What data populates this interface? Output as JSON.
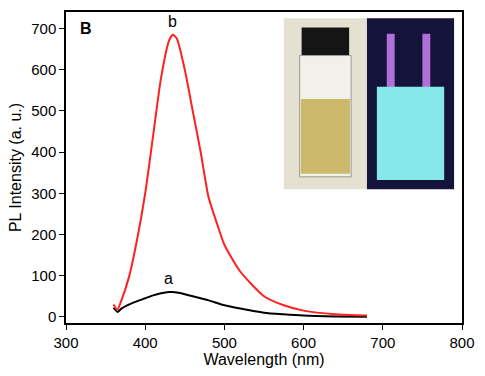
{
  "chart_data": {
    "type": "line",
    "x_title": "Wavelength (nm)",
    "y_title": "PL Intensity (a. u.)",
    "panel_label": "B",
    "x": [
      360,
      365,
      370,
      380,
      390,
      400,
      410,
      420,
      430,
      435,
      440,
      450,
      460,
      470,
      480,
      490,
      500,
      520,
      550,
      575,
      600,
      640,
      680
    ],
    "series": [
      {
        "name": "a",
        "color": "#000000",
        "values": [
          22,
          12,
          20,
          30,
          38,
          45,
          52,
          57,
          60,
          60,
          59,
          55,
          50,
          45,
          40,
          34,
          28,
          20,
          10,
          6,
          3,
          1,
          0
        ]
      },
      {
        "name": "b",
        "color": "#ff2020",
        "values": [
          30,
          18,
          40,
          100,
          190,
          300,
          440,
          580,
          670,
          685,
          675,
          600,
          500,
          400,
          290,
          230,
          175,
          110,
          50,
          28,
          15,
          6,
          3
        ]
      }
    ],
    "xlim": [
      300,
      800
    ],
    "xticks": [
      300,
      400,
      500,
      600,
      700,
      800
    ],
    "ylim": [
      -15,
      740
    ],
    "yticks": [
      0,
      100,
      200,
      300,
      400,
      500,
      600,
      700
    ],
    "grid": false
  }
}
